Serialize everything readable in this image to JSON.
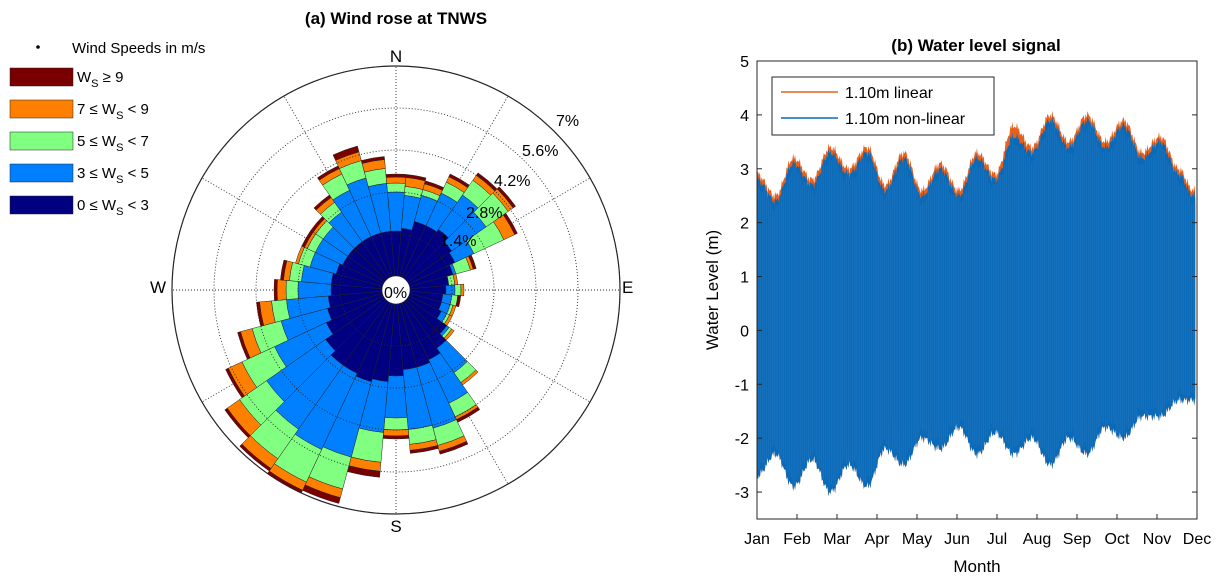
{
  "chart_data": [
    {
      "type": "wind-rose",
      "title": "(a) Wind rose at TNWS",
      "directions": [
        "N",
        "E",
        "S",
        "W"
      ],
      "radial_ticks": [
        "0%",
        "1.4%",
        "2.8%",
        "4.2%",
        "5.6%",
        "7%"
      ],
      "radial_max": 7,
      "grid": true,
      "legend_position": "top-left",
      "legend": {
        "title": "Wind Speeds in m/s",
        "entries": [
          {
            "key": "ws9",
            "label": "W",
            "sub": "S",
            "rest": " ≥ 9",
            "color": "#7a0000"
          },
          {
            "key": "ws79",
            "label": "7 ≤ W",
            "sub": "S",
            "rest": " < 9",
            "color": "#ff8000"
          },
          {
            "key": "ws57",
            "label": "5 ≤ W",
            "sub": "S",
            "rest": " < 7",
            "color": "#80ff80"
          },
          {
            "key": "ws35",
            "label": "3 ≤ W",
            "sub": "S",
            "rest": " < 5",
            "color": "#0080ff"
          },
          {
            "key": "ws03",
            "label": "0 ≤ W",
            "sub": "S",
            "rest": " < 3",
            "color": "#000080"
          }
        ]
      },
      "bin_order": [
        "ws03",
        "ws35",
        "ws57",
        "ws79",
        "ws9"
      ],
      "sector_width_deg": 10,
      "sector_directions_deg": [
        0,
        10,
        20,
        30,
        40,
        50,
        60,
        70,
        80,
        90,
        100,
        110,
        120,
        130,
        140,
        150,
        160,
        170,
        180,
        190,
        200,
        210,
        220,
        230,
        240,
        250,
        260,
        270,
        280,
        290,
        300,
        310,
        320,
        330,
        340,
        350
      ],
      "cumulative_percent": {
        "ws03": [
          1.5,
          1.6,
          1.9,
          1.9,
          2.0,
          1.8,
          1.7,
          1.5,
          1.3,
          1.2,
          1.1,
          1.1,
          1.2,
          1.6,
          1.9,
          2.1,
          2.2,
          2.2,
          2.4,
          2.6,
          2.7,
          2.6,
          2.6,
          2.4,
          2.1,
          1.9,
          1.8,
          1.7,
          1.7,
          1.6,
          1.5,
          1.5,
          1.5,
          1.5,
          1.5,
          1.5
        ],
        "ws35": [
          2.8,
          2.7,
          2.8,
          3.1,
          3.4,
          3.2,
          2.4,
          1.6,
          1.3,
          1.5,
          1.4,
          1.4,
          1.4,
          1.7,
          2.9,
          3.7,
          4.3,
          4.2,
          3.8,
          4.3,
          5.3,
          5.4,
          5.2,
          4.8,
          4.0,
          3.5,
          3.2,
          2.8,
          2.7,
          2.5,
          2.5,
          2.5,
          2.7,
          3.2,
          3.4,
          3.1
        ],
        "ws57": [
          3.1,
          3.0,
          3.0,
          3.5,
          4.0,
          4.1,
          3.5,
          2.1,
          1.5,
          1.7,
          1.6,
          1.5,
          1.5,
          1.8,
          3.3,
          4.2,
          4.9,
          4.7,
          4.2,
          5.3,
          6.4,
          6.6,
          6.4,
          5.9,
          5.2,
          4.5,
          3.7,
          3.2,
          3.1,
          2.9,
          2.8,
          2.8,
          3.1,
          3.8,
          4.0,
          3.6
        ],
        "ws79": [
          3.3,
          3.3,
          3.2,
          3.7,
          4.2,
          4.3,
          3.9,
          2.2,
          1.6,
          1.8,
          1.6,
          1.6,
          1.6,
          1.9,
          3.4,
          4.3,
          5.1,
          4.9,
          4.4,
          5.6,
          6.7,
          6.9,
          6.8,
          6.4,
          5.7,
          4.9,
          4.1,
          3.5,
          3.3,
          3.0,
          2.9,
          2.9,
          3.3,
          4.0,
          4.3,
          3.9
        ],
        "ws9": [
          3.4,
          3.4,
          3.3,
          3.8,
          4.3,
          4.4,
          4.0,
          2.3,
          1.6,
          1.8,
          1.7,
          1.6,
          1.6,
          1.9,
          3.4,
          4.4,
          5.2,
          5.0,
          4.5,
          5.8,
          6.9,
          7.0,
          6.9,
          6.5,
          5.8,
          5.0,
          4.2,
          3.6,
          3.4,
          3.0,
          3.0,
          3.0,
          3.4,
          4.1,
          4.5,
          4.0
        ]
      }
    },
    {
      "type": "area",
      "title": "(b) Water level signal",
      "xlabel": "Month",
      "ylabel": "Water Level (m)",
      "categories": [
        "Jan",
        "Feb",
        "Mar",
        "Apr",
        "May",
        "Jun",
        "Jul",
        "Aug",
        "Sep",
        "Oct",
        "Nov",
        "Dec"
      ],
      "ylim": [
        -3.5,
        5
      ],
      "yticks": [
        -3,
        -2,
        -1,
        0,
        1,
        2,
        3,
        4,
        5
      ],
      "grid": false,
      "legend_position": "top-left",
      "series": [
        {
          "name": "1.10m linear",
          "color": "#e8601c"
        },
        {
          "name": "1.10m non-linear",
          "color": "#0b6ab8"
        }
      ],
      "envelope_months": [
        0,
        0.5,
        1,
        1.5,
        2,
        2.5,
        3,
        3.5,
        4,
        4.5,
        5,
        5.5,
        6,
        6.5,
        7,
        7.5,
        8,
        8.5,
        9,
        9.5,
        10,
        10.5,
        11,
        11.5,
        11.9
      ],
      "linear_high": [
        2.9,
        2.5,
        3.2,
        2.8,
        3.4,
        3.0,
        3.4,
        2.7,
        3.3,
        2.6,
        3.1,
        2.6,
        3.3,
        2.9,
        3.8,
        3.4,
        4.0,
        3.5,
        4.0,
        3.5,
        3.9,
        3.3,
        3.6,
        3.0,
        2.6
      ],
      "nonlinear_high": [
        2.8,
        2.4,
        3.1,
        2.7,
        3.3,
        2.9,
        3.3,
        2.6,
        3.2,
        2.5,
        3.0,
        2.5,
        3.2,
        2.8,
        3.6,
        3.3,
        3.9,
        3.4,
        3.9,
        3.4,
        3.8,
        3.2,
        3.5,
        2.9,
        2.5
      ],
      "nonlinear_low": [
        -2.7,
        -2.3,
        -2.9,
        -2.4,
        -3.0,
        -2.5,
        -2.9,
        -2.2,
        -2.5,
        -2.0,
        -2.2,
        -1.8,
        -2.3,
        -1.9,
        -2.3,
        -2.0,
        -2.5,
        -2.0,
        -2.3,
        -1.8,
        -2.0,
        -1.6,
        -1.6,
        -1.3,
        -1.3
      ]
    }
  ]
}
